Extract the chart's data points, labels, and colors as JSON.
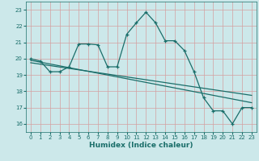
{
  "title": "",
  "xlabel": "Humidex (Indice chaleur)",
  "ylabel": "",
  "bg_color": "#cce8ea",
  "grid_color": "#b0d4d8",
  "line_color": "#1a6e6a",
  "x_ticks": [
    0,
    1,
    2,
    3,
    4,
    5,
    6,
    7,
    8,
    9,
    10,
    11,
    12,
    13,
    14,
    15,
    16,
    17,
    18,
    19,
    20,
    21,
    22,
    23
  ],
  "y_ticks": [
    16,
    17,
    18,
    19,
    20,
    21,
    22,
    23
  ],
  "ylim": [
    15.5,
    23.5
  ],
  "xlim": [
    -0.5,
    23.5
  ],
  "curve1_x": [
    0,
    1,
    2,
    3,
    4,
    5,
    6,
    7,
    8,
    9,
    10,
    11,
    12,
    13,
    14,
    15,
    16,
    17,
    18,
    19,
    20,
    21,
    22,
    23
  ],
  "curve1_y": [
    20.0,
    19.85,
    19.2,
    19.2,
    19.5,
    20.9,
    20.9,
    20.85,
    19.5,
    19.5,
    21.5,
    22.2,
    22.85,
    22.2,
    21.1,
    21.1,
    20.5,
    19.2,
    17.6,
    16.8,
    16.8,
    16.0,
    17.0,
    17.0
  ],
  "curve2_x": [
    0,
    23
  ],
  "curve2_y": [
    19.9,
    17.3
  ],
  "curve3_x": [
    0,
    23
  ],
  "curve3_y": [
    19.75,
    17.75
  ]
}
